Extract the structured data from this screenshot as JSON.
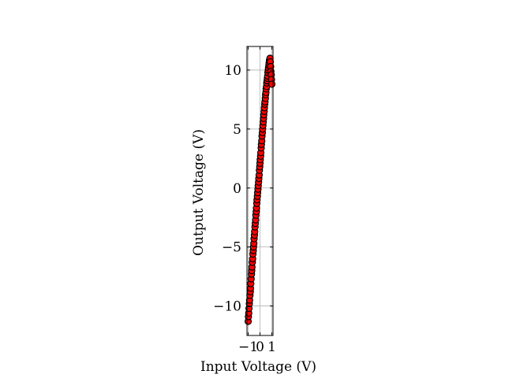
{
  "chart_data": {
    "type": "scatter",
    "title": "",
    "xlabel": "Input Voltage (V)",
    "ylabel": "Output Voltage (V)",
    "xlim": [
      -1.1,
      1.1
    ],
    "ylim": [
      -12.5,
      12
    ],
    "xticks": [
      -1,
      0,
      1
    ],
    "xtick_labels": [
      "−1",
      "0",
      "1"
    ],
    "yticks": [
      -10,
      -5,
      0,
      5,
      10
    ],
    "ytick_labels": [
      "−10",
      "−5",
      "0",
      "5",
      "10"
    ],
    "grid": true,
    "marker_color": "#ff0000",
    "marker_edge_color": "#000000",
    "series": [
      {
        "x": [
          -1.0,
          -0.98,
          -0.95,
          -0.93,
          -0.9,
          -0.88,
          -0.85,
          -0.82,
          -0.8,
          -0.78,
          -0.75,
          -0.72,
          -0.7,
          -0.68,
          -0.65,
          -0.62,
          -0.6,
          -0.57,
          -0.55,
          -0.52,
          -0.5,
          -0.47,
          -0.45,
          -0.42,
          -0.4,
          -0.37,
          -0.35,
          -0.32,
          -0.3,
          -0.27,
          -0.25,
          -0.22,
          -0.2,
          -0.17,
          -0.15,
          -0.12,
          -0.1,
          -0.07,
          -0.05,
          -0.02,
          0.0,
          0.02,
          0.05,
          0.07,
          0.1,
          0.12,
          0.15,
          0.17,
          0.2,
          0.22,
          0.25,
          0.27,
          0.3,
          0.32,
          0.35,
          0.37,
          0.4,
          0.42,
          0.45,
          0.47,
          0.5,
          0.52,
          0.55,
          0.57,
          0.6,
          0.62,
          0.65,
          0.67,
          0.7,
          0.72,
          0.75,
          0.77,
          0.8,
          0.82,
          0.85,
          0.87,
          0.9,
          0.92,
          0.95,
          0.97,
          1.0
        ],
        "y": [
          -11.3,
          -10.9,
          -10.6,
          -10.2,
          -9.8,
          -9.5,
          -9.1,
          -8.8,
          -8.5,
          -8.1,
          -7.7,
          -7.3,
          -7.0,
          -6.7,
          -6.3,
          -6.0,
          -5.6,
          -5.3,
          -5.0,
          -4.7,
          -4.3,
          -4.0,
          -3.7,
          -3.3,
          -3.0,
          -2.7,
          -2.3,
          -2.0,
          -1.7,
          -1.3,
          -1.0,
          -0.7,
          -0.4,
          -0.1,
          0.2,
          0.5,
          0.8,
          1.1,
          1.5,
          1.8,
          2.1,
          2.4,
          2.7,
          3.0,
          3.4,
          3.7,
          4.0,
          4.4,
          4.7,
          5.0,
          5.3,
          5.6,
          5.9,
          6.2,
          6.5,
          6.8,
          7.1,
          7.3,
          7.6,
          7.9,
          8.1,
          8.4,
          8.6,
          8.9,
          9.1,
          9.3,
          9.5,
          9.8,
          10.0,
          10.2,
          10.4,
          10.6,
          10.8,
          10.9,
          11.0,
          10.7,
          10.3,
          9.9,
          9.6,
          9.2,
          8.8
        ]
      }
    ]
  }
}
